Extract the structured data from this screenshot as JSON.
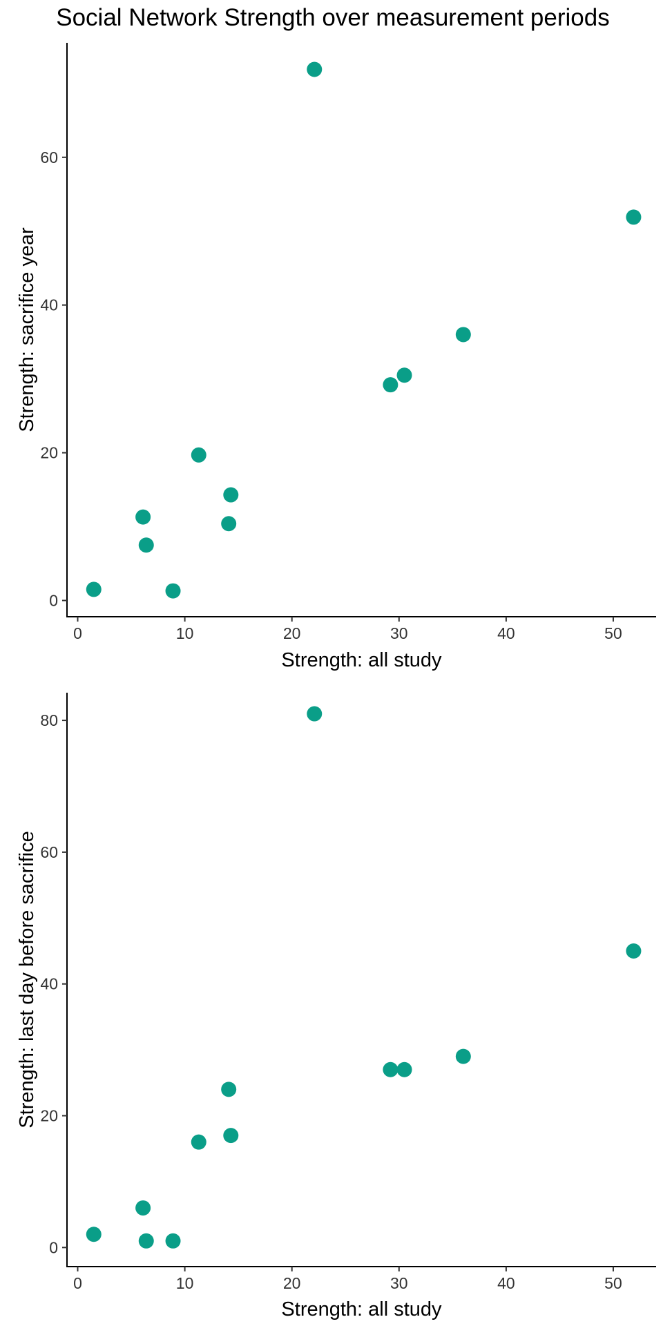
{
  "title": "Social Network Strength over measurement periods",
  "colors": {
    "point": "#0a9e88",
    "axis": "#000000",
    "tick_text": "#333333"
  },
  "chart_data": [
    {
      "type": "scatter",
      "xlabel": "Strength: all study",
      "ylabel": "Strength: sacrifice year",
      "xlim": [
        -1,
        54
      ],
      "ylim": [
        -2.2,
        75.5
      ],
      "xticks": [
        0,
        10,
        20,
        30,
        40,
        50
      ],
      "yticks": [
        0,
        20,
        40,
        60
      ],
      "grid": false,
      "legend": "none",
      "points": [
        {
          "x": 1.5,
          "y": 1.5
        },
        {
          "x": 6.1,
          "y": 11.3
        },
        {
          "x": 6.4,
          "y": 7.5
        },
        {
          "x": 8.9,
          "y": 1.3
        },
        {
          "x": 11.3,
          "y": 19.7
        },
        {
          "x": 14.1,
          "y": 10.4
        },
        {
          "x": 14.3,
          "y": 14.3
        },
        {
          "x": 22.1,
          "y": 71.9
        },
        {
          "x": 29.2,
          "y": 29.2
        },
        {
          "x": 30.5,
          "y": 30.5
        },
        {
          "x": 36.0,
          "y": 36.0
        },
        {
          "x": 51.9,
          "y": 51.9
        }
      ]
    },
    {
      "type": "scatter",
      "xlabel": "Strength: all study",
      "ylabel": "Strength: last day before sacrifice",
      "xlim": [
        -1,
        54
      ],
      "ylim": [
        -2.9,
        84.2
      ],
      "xticks": [
        0,
        10,
        20,
        30,
        40,
        50
      ],
      "yticks": [
        0,
        20,
        40,
        60,
        80
      ],
      "grid": false,
      "legend": "none",
      "points": [
        {
          "x": 1.5,
          "y": 2
        },
        {
          "x": 6.1,
          "y": 6
        },
        {
          "x": 6.4,
          "y": 1
        },
        {
          "x": 8.9,
          "y": 1
        },
        {
          "x": 11.3,
          "y": 16
        },
        {
          "x": 14.1,
          "y": 24
        },
        {
          "x": 14.3,
          "y": 17
        },
        {
          "x": 22.1,
          "y": 81
        },
        {
          "x": 29.2,
          "y": 27
        },
        {
          "x": 30.5,
          "y": 27
        },
        {
          "x": 36.0,
          "y": 29
        },
        {
          "x": 51.9,
          "y": 45
        }
      ]
    }
  ]
}
